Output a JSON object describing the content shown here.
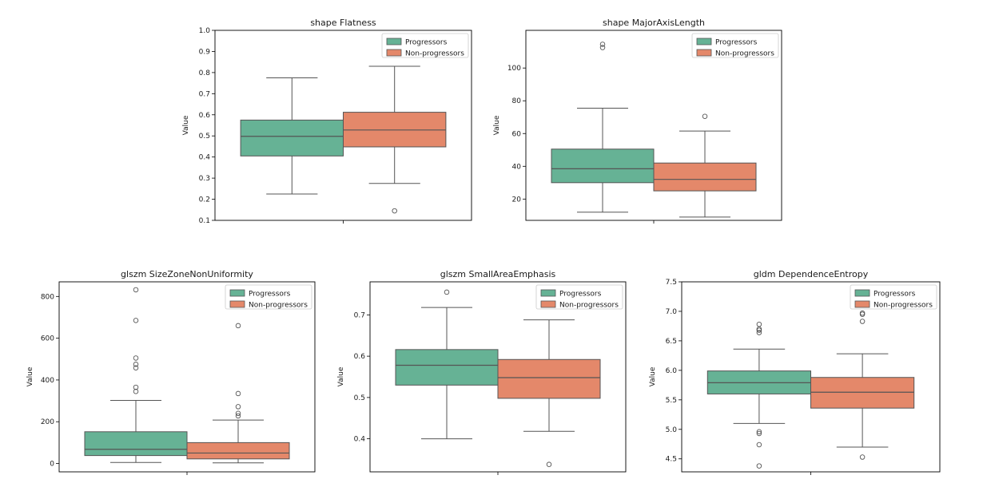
{
  "chart_data": [
    {
      "type": "box",
      "title": "shape Flatness",
      "ylabel": "Value",
      "ylim": [
        0.1,
        1.0
      ],
      "yticks": [
        0.1,
        0.2,
        0.3,
        0.4,
        0.5,
        0.6,
        0.7,
        0.8,
        0.9,
        1.0
      ],
      "ytick_labels": [
        "0.1",
        "0.2",
        "0.3",
        "0.4",
        "0.5",
        "0.6",
        "0.7",
        "0.8",
        "0.9",
        "1.0"
      ],
      "legend": "top-right",
      "series": [
        {
          "name": "Progressors",
          "color": "#66b295",
          "min": 0.225,
          "q1": 0.405,
          "median": 0.498,
          "q3": 0.575,
          "max": 0.775,
          "outliers": []
        },
        {
          "name": "Non-progressors",
          "color": "#e4886a",
          "min": 0.275,
          "q1": 0.448,
          "median": 0.528,
          "q3": 0.612,
          "max": 0.83,
          "outliers": [
            0.145
          ]
        }
      ]
    },
    {
      "type": "box",
      "title": "shape MajorAxisLength",
      "ylabel": "Value",
      "ylim": [
        7,
        123
      ],
      "yticks": [
        20,
        40,
        60,
        80,
        100
      ],
      "ytick_labels": [
        "20",
        "40",
        "60",
        "80",
        "100"
      ],
      "legend": "top-right",
      "series": [
        {
          "name": "Progressors",
          "color": "#66b295",
          "min": 12,
          "q1": 30,
          "median": 38.5,
          "q3": 50.5,
          "max": 75.5,
          "outliers": [
            112.5,
            114.5
          ]
        },
        {
          "name": "Non-progressors",
          "color": "#e4886a",
          "min": 9,
          "q1": 25,
          "median": 32,
          "q3": 42,
          "max": 61.5,
          "outliers": [
            70.5
          ]
        }
      ]
    },
    {
      "type": "box",
      "title": "glszm SizeZoneNonUniformity",
      "ylabel": "Value",
      "ylim": [
        -40,
        870
      ],
      "yticks": [
        0,
        200,
        400,
        600,
        800
      ],
      "ytick_labels": [
        "0",
        "200",
        "400",
        "600",
        "800"
      ],
      "legend": "top-right",
      "series": [
        {
          "name": "Progressors",
          "color": "#66b295",
          "min": 5,
          "q1": 38,
          "median": 68,
          "q3": 152,
          "max": 302,
          "outliers": [
            345,
            365,
            458,
            475,
            505,
            685,
            832
          ]
        },
        {
          "name": "Non-progressors",
          "color": "#e4886a",
          "min": 3,
          "q1": 22,
          "median": 50,
          "q3": 100,
          "max": 208,
          "outliers": [
            228,
            240,
            272,
            335,
            660
          ]
        }
      ]
    },
    {
      "type": "box",
      "title": "glszm SmallAreaEmphasis",
      "ylabel": "Value",
      "ylim": [
        0.32,
        0.78
      ],
      "yticks": [
        0.4,
        0.5,
        0.6,
        0.7
      ],
      "ytick_labels": [
        "0.4",
        "0.5",
        "0.6",
        "0.7"
      ],
      "legend": "top-right",
      "series": [
        {
          "name": "Progressors",
          "color": "#66b295",
          "min": 0.4,
          "q1": 0.53,
          "median": 0.578,
          "q3": 0.616,
          "max": 0.718,
          "outliers": [
            0.755
          ]
        },
        {
          "name": "Non-progressors",
          "color": "#e4886a",
          "min": 0.418,
          "q1": 0.498,
          "median": 0.548,
          "q3": 0.592,
          "max": 0.688,
          "outliers": [
            0.338
          ]
        }
      ]
    },
    {
      "type": "box",
      "title": "gldm DependenceEntropy",
      "ylabel": "Value",
      "ylim": [
        4.28,
        7.5
      ],
      "yticks": [
        4.5,
        5.0,
        5.5,
        6.0,
        6.5,
        7.0,
        7.5
      ],
      "ytick_labels": [
        "4.5",
        "5.0",
        "5.5",
        "6.0",
        "6.5",
        "7.0",
        "7.5"
      ],
      "legend": "top-right",
      "series": [
        {
          "name": "Progressors",
          "color": "#66b295",
          "min": 5.1,
          "q1": 5.6,
          "median": 5.79,
          "q3": 5.99,
          "max": 6.36,
          "outliers": [
            4.38,
            4.74,
            4.93,
            4.96,
            6.64,
            6.68,
            6.7,
            6.78
          ]
        },
        {
          "name": "Non-progressors",
          "color": "#e4886a",
          "min": 4.7,
          "q1": 5.36,
          "median": 5.63,
          "q3": 5.88,
          "max": 6.28,
          "outliers": [
            4.53,
            6.83,
            6.95,
            6.97
          ]
        }
      ]
    }
  ]
}
